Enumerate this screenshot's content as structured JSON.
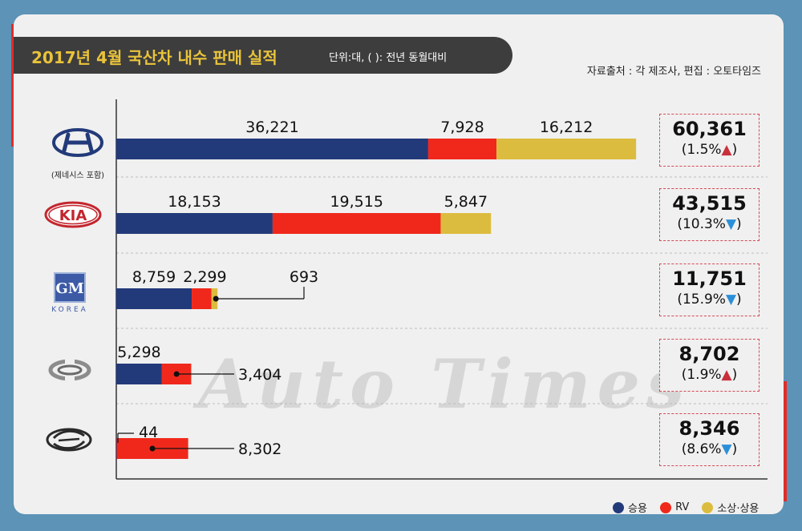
{
  "header": {
    "title": "2017년 4월 국산차 내수 판매 실적",
    "unit_note": "단위:대, ( ): 전년 동월대비",
    "source": "자료출처 : 각 제조사, 편집 : 오토타임즈"
  },
  "watermark": "Auto Times",
  "colors": {
    "passenger": "#233a7a",
    "rv": "#f0281c",
    "commercial": "#dcbc3f"
  },
  "chart_data": {
    "type": "bar",
    "orientation": "horizontal",
    "stacked": true,
    "categories": [
      "Hyundai",
      "Kia",
      "GM Korea",
      "Renault Samsung",
      "SsangYong"
    ],
    "series": [
      {
        "name": "승용",
        "values": [
          36221,
          18153,
          8759,
          5298,
          44
        ]
      },
      {
        "name": "RV",
        "values": [
          7928,
          19515,
          2299,
          3404,
          8302
        ]
      },
      {
        "name": "소상·상용",
        "values": [
          16212,
          5847,
          693,
          0,
          0
        ]
      }
    ],
    "xlim": [
      0,
      61000
    ],
    "grid": "horizontal dashed",
    "legend": "bottom-right"
  },
  "makers": [
    {
      "logo": "hyundai-logo",
      "sublabel": "(제네시스 포함)",
      "labels": [
        "36,221",
        "7,928",
        "16,212"
      ],
      "total": "60,361",
      "change": "(1.5%",
      "trend": "▲",
      "trend_dir": "up"
    },
    {
      "logo": "kia-logo",
      "logo_text": "KIA",
      "sublabel": "",
      "labels": [
        "18,153",
        "19,515",
        "5,847"
      ],
      "total": "43,515",
      "change": "(10.3%",
      "trend": "▼",
      "trend_dir": "down"
    },
    {
      "logo": "gm-korea-logo",
      "logo_text": "GM",
      "logo_sub": "KOREA",
      "sublabel": "",
      "labels": [
        "8,759",
        "2,299",
        "693"
      ],
      "total": "11,751",
      "change": "(15.9%",
      "trend": "▼",
      "trend_dir": "down"
    },
    {
      "logo": "renault-samsung-logo",
      "sublabel": "",
      "labels": [
        "5,298",
        "3,404",
        ""
      ],
      "total": "8,702",
      "change": "(1.9%",
      "trend": "▲",
      "trend_dir": "up"
    },
    {
      "logo": "ssangyong-logo",
      "sublabel": "",
      "labels": [
        "44",
        "8,302",
        ""
      ],
      "total": "8,346",
      "change": "(8.6%",
      "trend": "▼",
      "trend_dir": "down"
    }
  ],
  "legend": {
    "passenger": "승용",
    "rv": "RV",
    "commercial": "소상·상용"
  }
}
